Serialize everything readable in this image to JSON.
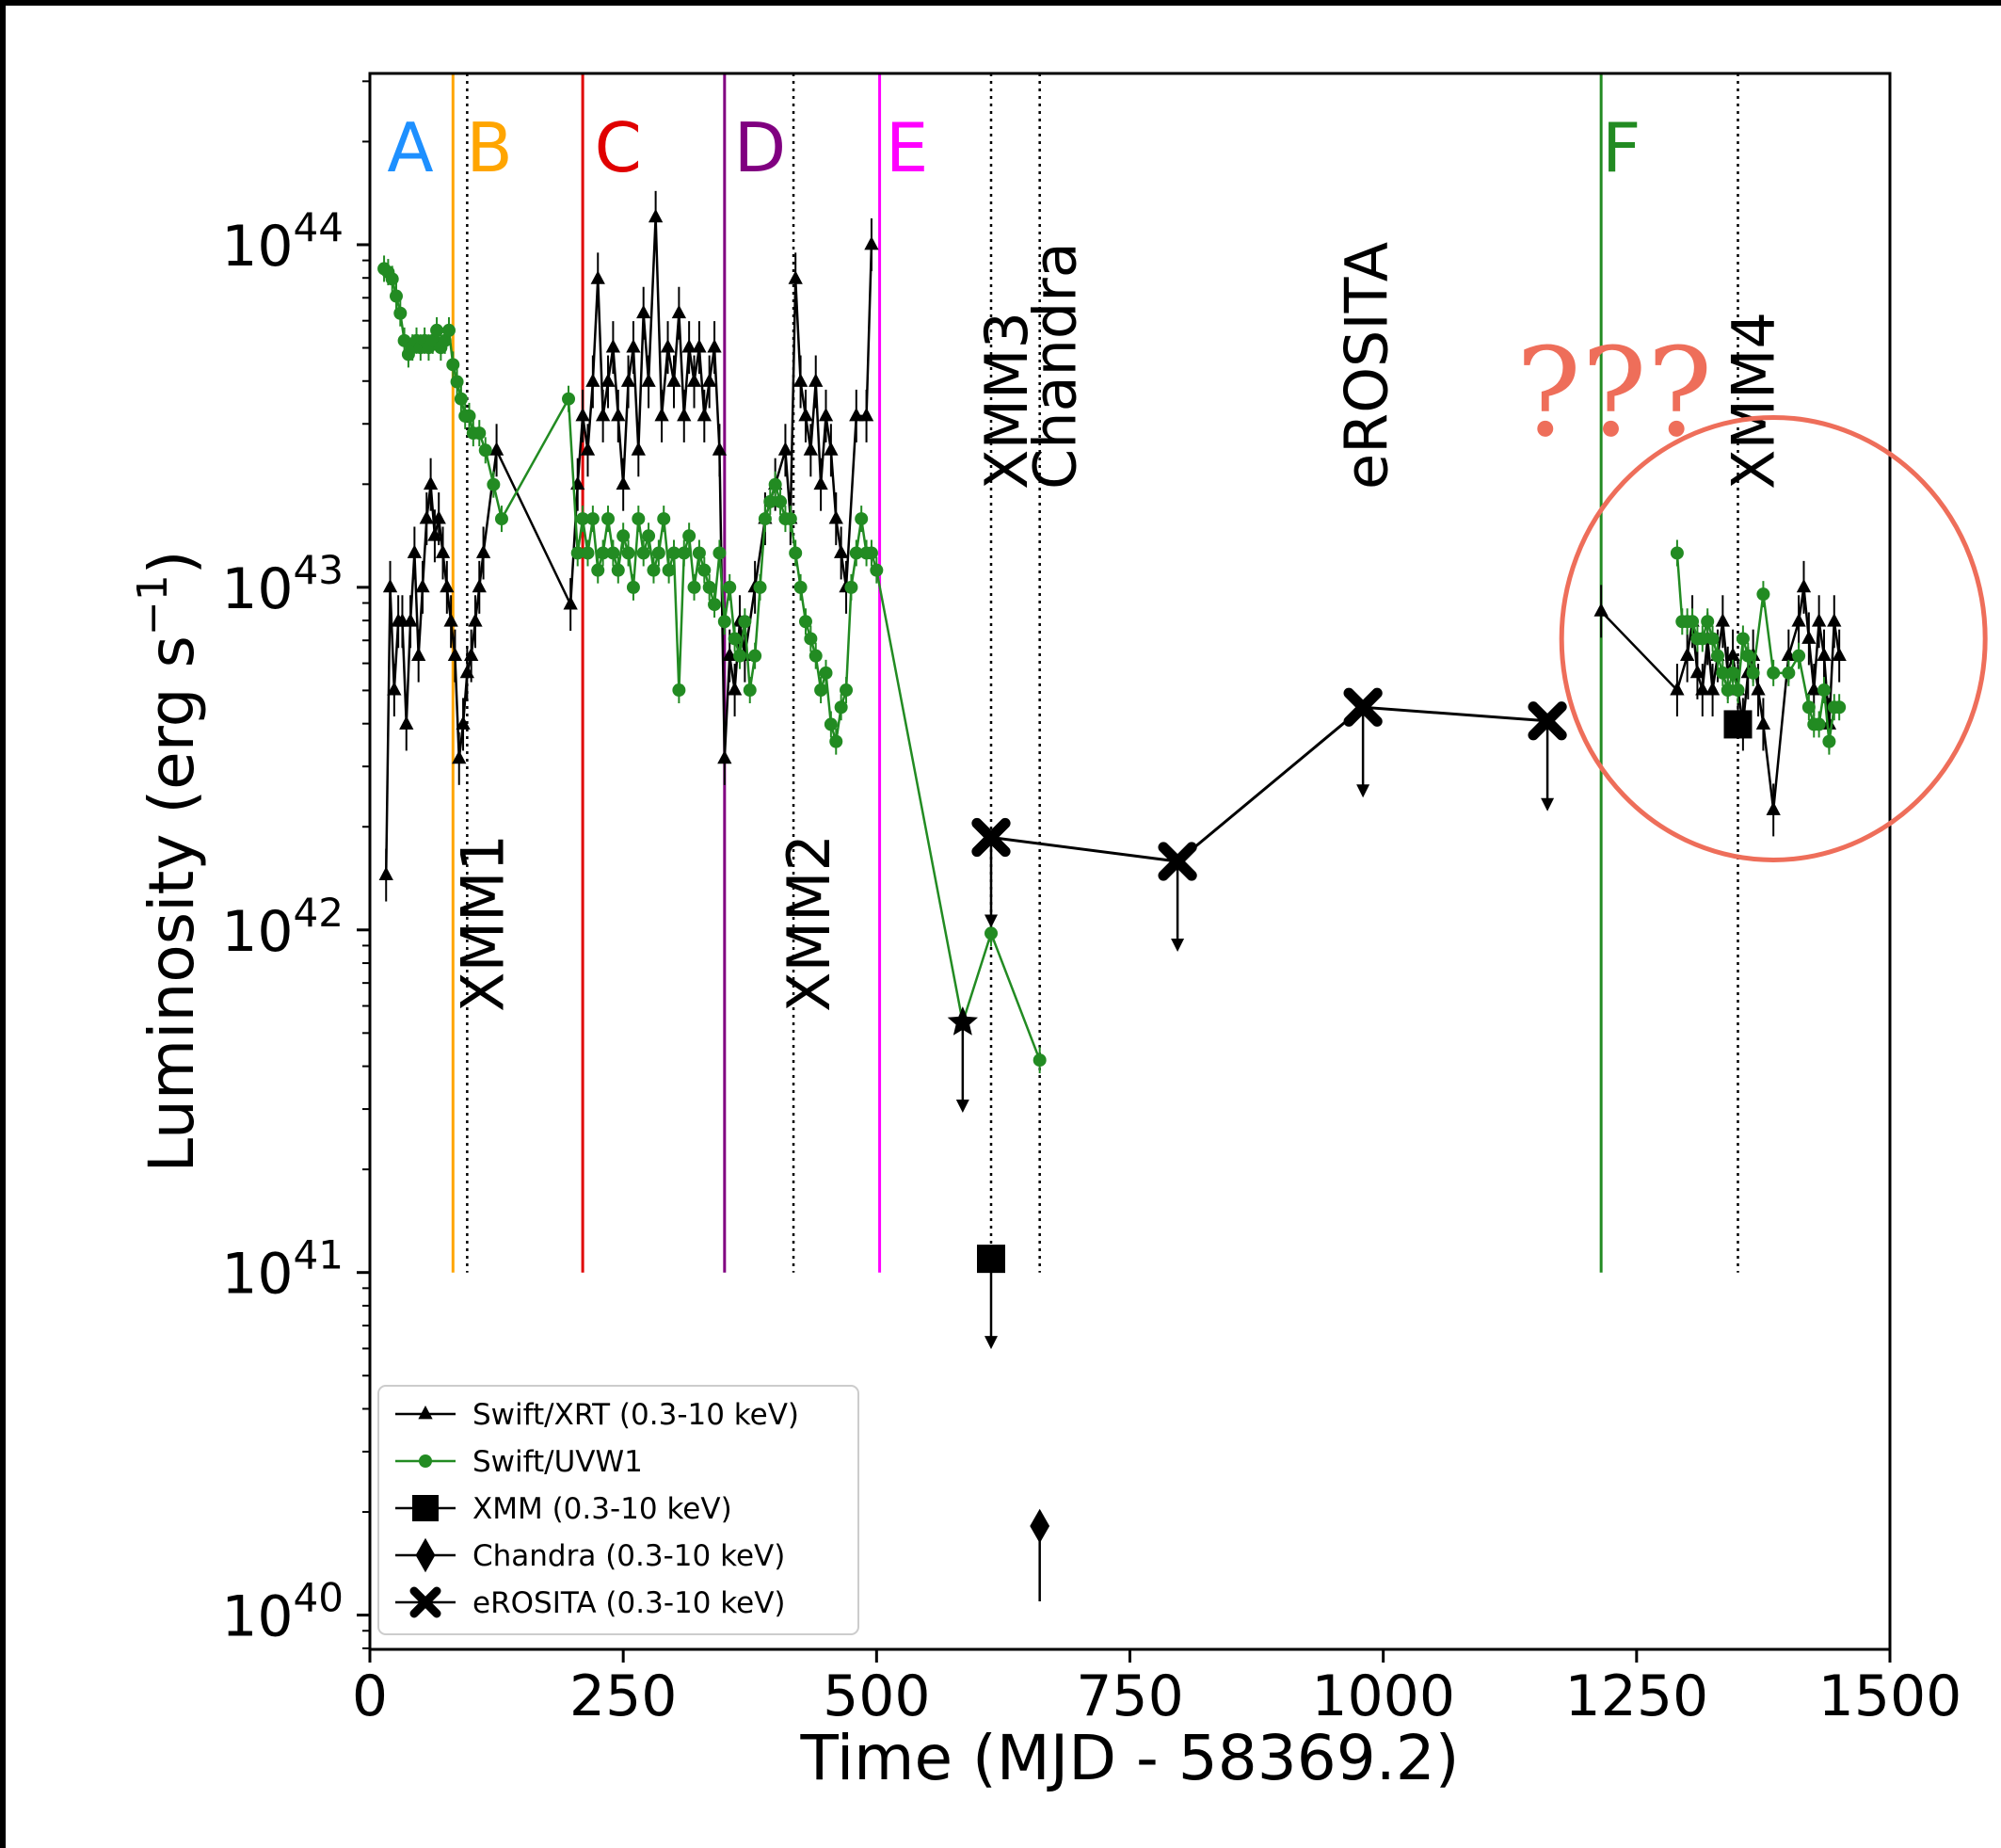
{
  "chart_data": {
    "type": "scatter",
    "xlabel": "Time (MJD - 58369.2)",
    "ylabel": "Luminosity (erg s",
    "ylabel_sup": "−1",
    "ylabel_close": ")",
    "xlim": [
      0,
      1500
    ],
    "ylim_log10": [
      39.9,
      44.5
    ],
    "y_scale": "log",
    "xticks": [
      {
        "value": 0,
        "label": "0"
      },
      {
        "value": 250,
        "label": "250"
      },
      {
        "value": 500,
        "label": "500"
      },
      {
        "value": 750,
        "label": "750"
      },
      {
        "value": 1000,
        "label": "1000"
      },
      {
        "value": 1250,
        "label": "1250"
      },
      {
        "value": 1500,
        "label": "1500"
      }
    ],
    "yticks": [
      {
        "value": 40,
        "base": "10",
        "exp": "40"
      },
      {
        "value": 41,
        "base": "10",
        "exp": "41"
      },
      {
        "value": 42,
        "base": "10",
        "exp": "42"
      },
      {
        "value": 43,
        "base": "10",
        "exp": "43"
      },
      {
        "value": 44,
        "base": "10",
        "exp": "44"
      }
    ],
    "phase_lines": [
      {
        "label": "A",
        "x": null,
        "color": "#1e90ff",
        "label_x": 40
      },
      {
        "label": "B",
        "x": 82,
        "color": "#ffa500",
        "label_x": 118
      },
      {
        "label": "C",
        "x": 210,
        "color": "#e00000",
        "label_x": 245
      },
      {
        "label": "D",
        "x": 350,
        "color": "#800080",
        "label_x": 385
      },
      {
        "label": "E",
        "x": 503,
        "color": "#ff00ff",
        "label_x": 530
      },
      {
        "label": "F",
        "x": 1215,
        "color": "#228b22",
        "label_x": 1235
      }
    ],
    "obs_lines": [
      {
        "label": "XMM1",
        "x": 96,
        "label_pos": "low"
      },
      {
        "label": "XMM2",
        "x": 418,
        "label_pos": "low"
      },
      {
        "label": "XMM3",
        "x": 613,
        "label_pos": "high"
      },
      {
        "label": "Chandra",
        "x": 661,
        "label_pos": "high"
      },
      {
        "label": "eROSITA",
        "x": null,
        "label_x": 970,
        "label_pos": "high"
      },
      {
        "label": "XMM4",
        "x": 1350,
        "label_pos": "high"
      }
    ],
    "series": [
      {
        "name": "Swift/XRT (0.3-10 keV)",
        "color": "#000000",
        "marker": "triangle",
        "x": [
          16,
          20,
          24,
          28,
          32,
          36,
          40,
          44,
          48,
          52,
          56,
          60,
          64,
          68,
          72,
          76,
          80,
          84,
          88,
          92,
          96,
          100,
          104,
          108,
          112,
          125,
          198,
          205,
          210,
          215,
          220,
          225,
          230,
          235,
          240,
          245,
          250,
          255,
          260,
          265,
          270,
          275,
          282,
          288,
          294,
          300,
          305,
          310,
          315,
          320,
          325,
          330,
          335,
          340,
          345,
          350,
          355,
          360,
          365,
          370,
          380,
          390,
          400,
          410,
          415,
          420,
          425,
          430,
          435,
          440,
          445,
          450,
          455,
          460,
          465,
          470,
          480,
          490,
          495
        ],
        "y": [
          42.16,
          43.0,
          42.7,
          42.9,
          42.9,
          42.6,
          42.9,
          43.1,
          42.8,
          43.0,
          43.2,
          43.3,
          43.15,
          43.2,
          43.1,
          43.0,
          42.9,
          42.8,
          42.5,
          42.6,
          42.75,
          42.8,
          42.9,
          43.0,
          43.1,
          43.4,
          42.95,
          43.3,
          43.5,
          43.4,
          43.6,
          43.9,
          43.5,
          43.6,
          43.7,
          43.5,
          43.3,
          43.6,
          43.7,
          43.4,
          43.8,
          43.6,
          44.08,
          43.5,
          43.7,
          43.6,
          43.8,
          43.5,
          43.7,
          43.6,
          43.7,
          43.5,
          43.6,
          43.7,
          43.4,
          42.5,
          42.8,
          42.7,
          42.9,
          42.8,
          43.0,
          43.2,
          43.3,
          43.4,
          43.2,
          43.9,
          43.6,
          43.5,
          43.4,
          43.6,
          43.3,
          43.5,
          43.4,
          43.2,
          43.1,
          43.0,
          43.5,
          43.5,
          44.0
        ]
      },
      {
        "name": "Swift/XRT (0.3-10 keV)",
        "color": "#000000",
        "marker": "triangle",
        "x": [
          1215,
          1290,
          1300,
          1305,
          1310,
          1315,
          1320,
          1325,
          1330,
          1335,
          1340,
          1345,
          1350,
          1355,
          1360,
          1365,
          1370,
          1375,
          1385,
          1400,
          1410,
          1415,
          1420,
          1425,
          1430,
          1435,
          1440,
          1445,
          1450
        ],
        "y": [
          42.93,
          42.7,
          42.8,
          42.9,
          42.75,
          42.7,
          42.85,
          42.7,
          42.8,
          42.9,
          42.75,
          42.8,
          42.7,
          42.6,
          42.75,
          42.8,
          42.7,
          42.6,
          42.35,
          42.8,
          42.9,
          43.0,
          42.85,
          42.7,
          42.9,
          42.8,
          42.6,
          42.9,
          42.8
        ]
      },
      {
        "name": "Swift/UVW1",
        "color": "#228b22",
        "marker": "circle",
        "x": [
          14,
          18,
          22,
          26,
          30,
          34,
          38,
          42,
          46,
          50,
          54,
          58,
          62,
          66,
          70,
          74,
          78,
          82,
          86,
          90,
          94,
          98,
          102,
          108,
          114,
          122,
          130,
          196,
          205,
          210,
          215,
          220,
          225,
          230,
          235,
          240,
          245,
          250,
          255,
          260,
          265,
          270,
          275,
          280,
          285,
          290,
          295,
          300,
          305,
          310,
          315,
          320,
          325,
          330,
          335,
          340,
          345,
          350,
          355,
          360,
          365,
          370,
          375,
          380,
          385,
          390,
          395,
          400,
          405,
          410,
          415,
          420,
          425,
          430,
          435,
          440,
          445,
          450,
          455,
          460,
          465,
          470,
          475,
          480,
          485,
          490,
          495,
          500,
          585,
          613,
          661
        ],
        "y": [
          43.93,
          43.92,
          43.9,
          43.85,
          43.8,
          43.72,
          43.68,
          43.7,
          43.72,
          43.7,
          43.72,
          43.7,
          43.72,
          43.75,
          43.7,
          43.72,
          43.75,
          43.65,
          43.6,
          43.55,
          43.5,
          43.5,
          43.45,
          43.45,
          43.4,
          43.3,
          43.2,
          43.55,
          43.1,
          43.2,
          43.1,
          43.2,
          43.05,
          43.1,
          43.2,
          43.1,
          43.05,
          43.15,
          43.1,
          43.0,
          43.2,
          43.1,
          43.15,
          43.05,
          43.1,
          43.2,
          43.05,
          43.1,
          42.7,
          43.1,
          43.15,
          43.0,
          43.1,
          43.05,
          43.0,
          42.95,
          43.1,
          42.9,
          43.0,
          42.85,
          42.8,
          42.9,
          42.7,
          42.8,
          43.0,
          43.2,
          43.25,
          43.3,
          43.25,
          43.2,
          43.2,
          43.1,
          43.0,
          42.9,
          42.85,
          42.8,
          42.7,
          42.75,
          42.6,
          42.55,
          42.65,
          42.7,
          43.0,
          43.1,
          43.2,
          43.1,
          43.1,
          43.05,
          41.73,
          41.99,
          41.62
        ]
      },
      {
        "name": "Swift/UVW1",
        "color": "#228b22",
        "marker": "circle",
        "x": [
          1290,
          1295,
          1300,
          1305,
          1310,
          1315,
          1320,
          1325,
          1330,
          1335,
          1340,
          1345,
          1350,
          1355,
          1360,
          1365,
          1375,
          1385,
          1400,
          1410,
          1420,
          1425,
          1430,
          1435,
          1440,
          1445,
          1450
        ],
        "y": [
          43.1,
          42.9,
          42.9,
          42.9,
          42.85,
          42.85,
          42.9,
          42.85,
          42.8,
          42.75,
          42.7,
          42.75,
          42.7,
          42.85,
          42.8,
          42.75,
          42.98,
          42.75,
          42.75,
          42.8,
          42.65,
          42.6,
          42.6,
          42.7,
          42.55,
          42.65,
          42.65
        ]
      },
      {
        "name": "XMM (0.3-10 keV)",
        "color": "#000000",
        "marker": "square",
        "x": [
          613,
          1350
        ],
        "y": [
          41.04,
          42.6
        ]
      },
      {
        "name": "Chandra (0.3-10 keV)",
        "color": "#000000",
        "marker": "diamond",
        "x": [
          661
        ],
        "y": [
          40.26
        ]
      },
      {
        "name": "eROSITA (0.3-10 keV)",
        "color": "#000000",
        "marker": "x",
        "x": [
          613,
          797,
          980,
          1162
        ],
        "y": [
          42.27,
          42.2,
          42.65,
          42.61
        ]
      },
      {
        "name": "",
        "color": "#000000",
        "marker": "star",
        "x": [
          585
        ],
        "y": [
          41.73
        ]
      }
    ],
    "legend": {
      "placement": "lower-left",
      "entries": [
        {
          "label": "Swift/XRT (0.3-10 keV)",
          "marker": "triangle",
          "color": "#000000"
        },
        {
          "label": "Swift/UVW1",
          "marker": "circle",
          "color": "#228b22"
        },
        {
          "label": "XMM (0.3-10 keV)",
          "marker": "square",
          "color": "#000000"
        },
        {
          "label": "Chandra (0.3-10 keV)",
          "marker": "diamond",
          "color": "#000000"
        },
        {
          "label": "eROSITA (0.3-10 keV)",
          "marker": "x",
          "color": "#000000"
        }
      ]
    },
    "annotation": {
      "text": "???",
      "color": "#ee6e5a",
      "circle_center": [
        1385,
        42.85
      ]
    }
  }
}
